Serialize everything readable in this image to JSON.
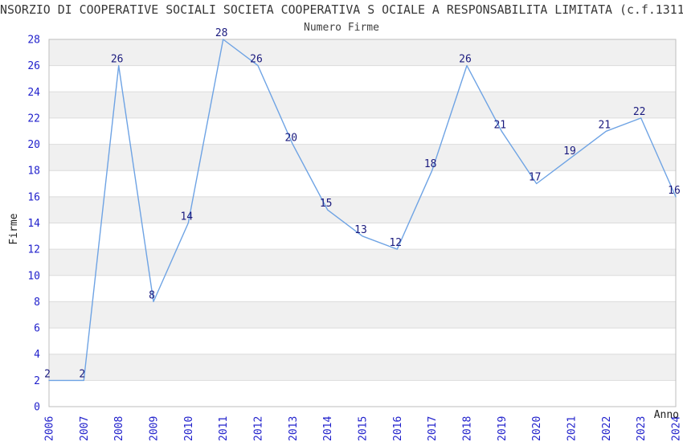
{
  "title": "NSORZIO DI COOPERATIVE SOCIALI SOCIETA COOPERATIVA S OCIALE A RESPONSABILITA LIMITATA (c.f.1311",
  "chart_data": {
    "type": "line",
    "title": "Numero Firme",
    "xlabel": "Anno",
    "ylabel": "Firme",
    "categories": [
      "2006",
      "2007",
      "2008",
      "2009",
      "2010",
      "2011",
      "2012",
      "2013",
      "2014",
      "2015",
      "2016",
      "2017",
      "2018",
      "2019",
      "2020",
      "2021",
      "2022",
      "2023",
      "2024"
    ],
    "values": [
      2,
      2,
      26,
      8,
      14,
      28,
      26,
      20,
      15,
      13,
      12,
      18,
      26,
      21,
      17,
      19,
      21,
      22,
      16
    ],
    "ylim": [
      0,
      28
    ],
    "ytick_step": 2,
    "grid": true,
    "legend": "none",
    "point_labels_shown": true,
    "colors": {
      "line": "#6ea3e4",
      "tick_labels": "#2222cc",
      "point_labels": "#1a1a7e",
      "band_gray": "#f0f0f0",
      "band_white": "#ffffff",
      "gridline": "#dcdcdc",
      "plot_border": "#bebebe",
      "title_text": "#383838"
    }
  }
}
